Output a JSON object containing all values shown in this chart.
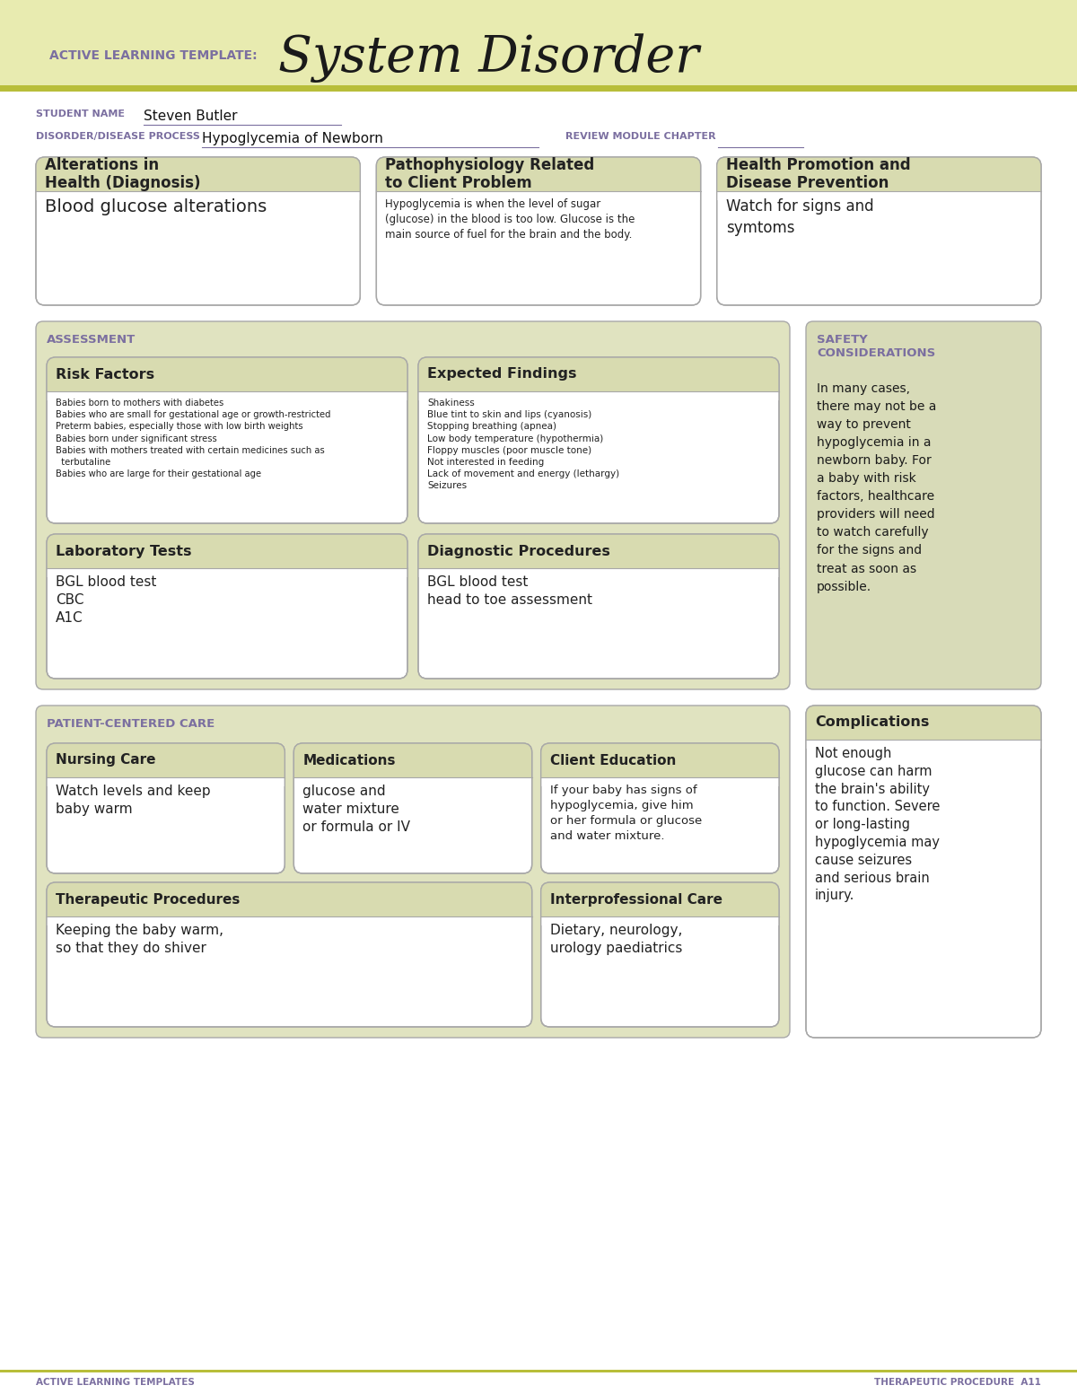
{
  "bg_header": "#e8ebb0",
  "bg_white": "#ffffff",
  "bg_section": "#e0e3c0",
  "bg_safety": "#d8dbb8",
  "olive_line": "#b8be3a",
  "purple_label": "#7b6fa0",
  "dark_text": "#1a1a1a",
  "box_border": "#a8a8a8",
  "tab_color": "#d8dbb0",
  "title_template": "ACTIVE LEARNING TEMPLATE:",
  "title_main": "System Disorder",
  "student_label": "STUDENT NAME",
  "student_name": "Steven Butler",
  "disorder_label": "DISORDER/DISEASE PROCESS",
  "disorder_name": "Hypoglycemia of Newborn",
  "review_label": "REVIEW MODULE CHAPTER",
  "box1_title": "Alterations in\nHealth (Diagnosis)",
  "box1_content": "Blood glucose alterations",
  "box2_title": "Pathophysiology Related\nto Client Problem",
  "box2_content": "Hypoglycemia is when the level of sugar\n(glucose) in the blood is too low. Glucose is the\nmain source of fuel for the brain and the body.",
  "box3_title": "Health Promotion and\nDisease Prevention",
  "box3_content": "Watch for signs and\nsymtoms",
  "assessment_label": "ASSESSMENT",
  "safety_label": "SAFETY\nCONSIDERATIONS",
  "safety_content": "In many cases,\nthere may not be a\nway to prevent\nhypoglycemia in a\nnewborn baby. For\na baby with risk\nfactors, healthcare\nproviders will need\nto watch carefully\nfor the signs and\ntreat as soon as\npossible.",
  "risk_title": "Risk Factors",
  "risk_content": "Babies born to mothers with diabetes\nBabies who are small for gestational age or growth-restricted\nPreterm babies, especially those with low birth weights\nBabies born under significant stress\nBabies with mothers treated with certain medicines such as\n  terbutaline\nBabies who are large for their gestational age",
  "expected_title": "Expected Findings",
  "expected_content": "Shakiness\nBlue tint to skin and lips (cyanosis)\nStopping breathing (apnea)\nLow body temperature (hypothermia)\nFloppy muscles (poor muscle tone)\nNot interested in feeding\nLack of movement and energy (lethargy)\nSeizures",
  "lab_title": "Laboratory Tests",
  "lab_content": "BGL blood test\nCBC\nA1C",
  "diag_title": "Diagnostic Procedures",
  "diag_content": "BGL blood test\nhead to toe assessment",
  "patient_label": "PATIENT-CENTERED CARE",
  "nursing_title": "Nursing Care",
  "nursing_content": "Watch levels and keep\nbaby warm",
  "med_title": "Medications",
  "med_content": "glucose and\nwater mixture\nor formula or IV",
  "edu_title": "Client Education",
  "edu_content": "If your baby has signs of\nhypoglycemia, give him\nor her formula or glucose\nand water mixture.",
  "comp_title": "Complications",
  "comp_content": "Not enough\nglucose can harm\nthe brain's ability\nto function. Severe\nor long-lasting\nhypoglycemia may\ncause seizures\nand serious brain\ninjury.",
  "ther_title": "Therapeutic Procedures",
  "ther_content": "Keeping the baby warm,\nso that they do shiver",
  "inter_title": "Interprofessional Care",
  "inter_content": "Dietary, neurology,\nurology paediatrics",
  "footer_left": "ACTIVE LEARNING TEMPLATES",
  "footer_right": "THERAPEUTIC PROCEDURE  A11"
}
